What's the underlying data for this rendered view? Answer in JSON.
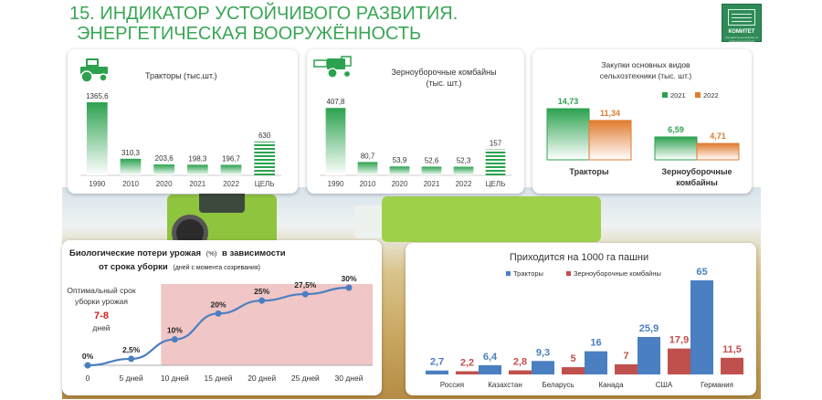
{
  "header": {
    "title_line1": "15. ИНДИКАТОР УСТОЙЧИВОГО РАЗВИТИЯ.",
    "title_line2": "ЭНЕРГЕТИЧЕСКАЯ ВООРУЖЁННОСТЬ",
    "logo_text": "КОМИТЕТ",
    "logo_subtext": "Государственной Думы по аграрным вопросам"
  },
  "colors": {
    "title_green": "#3aa655",
    "green": "#2ca24f",
    "green_light": "#a8dbb4",
    "orange": "#e07b2e",
    "blue": "#4a7fc1",
    "red": "#c0504d",
    "pink_zone": "#f1c6c6",
    "curve": "#4a7fc1"
  },
  "chart_data": [
    {
      "id": "tractors",
      "type": "bar",
      "title": "Тракторы (тыс.шт.)",
      "icon": "tractor-icon",
      "categories": [
        "1990",
        "2010",
        "2020",
        "2021",
        "2022",
        "ЦЕЛЬ"
      ],
      "values": [
        1365.6,
        310.3,
        203.6,
        198.3,
        196.7,
        630
      ],
      "value_labels": [
        "1365,6",
        "310,3",
        "203,6",
        "198,3",
        "196,7",
        "630"
      ],
      "target_category": "ЦЕЛЬ",
      "ylim": [
        0,
        1400
      ]
    },
    {
      "id": "combines",
      "type": "bar",
      "title_line1": "Зерноуборочные комбайны",
      "title_line2": "(тыс. шт.)",
      "icon": "combine-harvester-icon",
      "categories": [
        "1990",
        "2010",
        "2020",
        "2021",
        "2022",
        "ЦЕЛЬ"
      ],
      "values": [
        407.8,
        80.7,
        53.9,
        52.6,
        52.3,
        157
      ],
      "value_labels": [
        "407,8",
        "80,7",
        "53,9",
        "52,6",
        "52,3",
        "157"
      ],
      "target_category": "ЦЕЛЬ",
      "ylim": [
        0,
        420
      ]
    },
    {
      "id": "purchases",
      "type": "bar",
      "title_line1": "Закупки основных видов",
      "title_line2": "сельхозтехники (тыс. шт.)",
      "legend_position": "top-right",
      "categories": [
        "Тракторы",
        "Зерноуборочные|комбайны"
      ],
      "series": [
        {
          "name": "2021",
          "values": [
            14.73,
            6.59
          ],
          "value_labels": [
            "14,73",
            "6,59"
          ]
        },
        {
          "name": "2022",
          "values": [
            11.34,
            4.71
          ],
          "value_labels": [
            "11,34",
            "4,71"
          ]
        }
      ],
      "ylim": [
        0,
        15
      ]
    },
    {
      "id": "losses",
      "type": "line",
      "title_part1": "Биологические потери урожая",
      "title_unit": "(%)",
      "title_part2": "в зависимости",
      "title_line2": "от срока уборки",
      "title_note": "(дней с момента созревания)",
      "x": [
        "0",
        "5 дней",
        "10 дней",
        "15 дней",
        "20 дней",
        "25 дней",
        "30 дней"
      ],
      "y": [
        0,
        2.5,
        10,
        20,
        25,
        27.5,
        30
      ],
      "value_labels": [
        "0%",
        "2,5%",
        "10%",
        "20%",
        "25%",
        "27,5%",
        "30%"
      ],
      "ylim": [
        0,
        30
      ],
      "optimal": {
        "line1": "Оптимальный срок",
        "line2": "уборки урожая",
        "range": "7-8",
        "unit": "дней"
      },
      "shaded_from_index": 2
    },
    {
      "id": "per1000ha",
      "type": "bar",
      "title": "Приходится на 1000 га пашни",
      "legend_position": "top",
      "categories": [
        "Россия",
        "Казахстан",
        "Беларусь",
        "Канада",
        "США",
        "Германия"
      ],
      "series": [
        {
          "name": "Тракторы",
          "values": [
            2.7,
            6.4,
            9.3,
            16,
            25.9,
            65
          ],
          "value_labels": [
            "2,7",
            "6,4",
            "9,3",
            "16",
            "25,9",
            "65"
          ]
        },
        {
          "name": "Зерноуборочные комбайны",
          "values": [
            2.2,
            2.8,
            5,
            7,
            17.9,
            11.5
          ],
          "value_labels": [
            "2,2",
            "2,8",
            "5",
            "7",
            "17,9",
            "11,5"
          ]
        }
      ],
      "ylim": [
        0,
        65
      ]
    }
  ]
}
